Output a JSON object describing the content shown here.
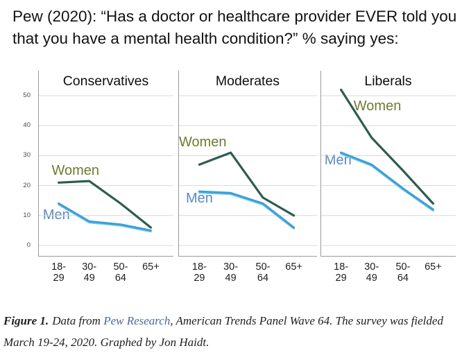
{
  "title": "Pew (2020): “Has a doctor or healthcare provider EVER told you that you have a mental health condition?” % saying yes:",
  "chart_data": {
    "type": "line",
    "grid": true,
    "legend_position": "inline-labels",
    "ylabel": "% saying yes",
    "categories": [
      "18-\n29",
      "30-\n49",
      "50-\n64",
      "65+"
    ],
    "y_ticks": [
      0,
      10,
      20,
      30,
      40,
      50
    ],
    "ylim": [
      0,
      58
    ],
    "colors": {
      "Women": "#2d5c4f",
      "Men": "#3f9ed8",
      "men_glow": "#85d2ee",
      "women_label": "#6d7b2e",
      "men_label": "#5b87c5",
      "gridline": "#d8d8d8",
      "axis": "#9a9a9a"
    },
    "panels": [
      {
        "title": "Conservatives",
        "series": [
          {
            "name": "Women",
            "values": [
              21,
              21.5,
              14,
              6
            ],
            "label": {
              "left_pct": 10,
              "at_value": 24.5
            }
          },
          {
            "name": "Men",
            "values": [
              14,
              8,
              7,
              5
            ],
            "label": {
              "left_pct": 3.5,
              "at_value": 9.7
            }
          }
        ]
      },
      {
        "title": "Moderates",
        "series": [
          {
            "name": "Women",
            "values": [
              27,
              31,
              16,
              10
            ],
            "label": {
              "left_pct": 0.5,
              "at_value": 34
            }
          },
          {
            "name": "Men",
            "values": [
              18,
              17.5,
              14,
              6
            ],
            "label": {
              "left_pct": 5.5,
              "at_value": 15.3
            }
          }
        ]
      },
      {
        "title": "Liberals",
        "series": [
          {
            "name": "Women",
            "values": [
              52,
              36,
              25,
              14
            ],
            "label": {
              "left_pct": 24.5,
              "at_value": 46
            }
          },
          {
            "name": "Men",
            "values": [
              31,
              27,
              19,
              12
            ],
            "label": {
              "left_pct": 3,
              "at_value": 28
            }
          }
        ]
      }
    ]
  },
  "caption": {
    "figure_label": "Figure 1.",
    "text_before_link": "Data from ",
    "link_text": "Pew Research",
    "text_after_link": ", American Trends Panel Wave 64. The survey was fielded March 19-24, 2020. Graphed by Jon Haidt."
  }
}
